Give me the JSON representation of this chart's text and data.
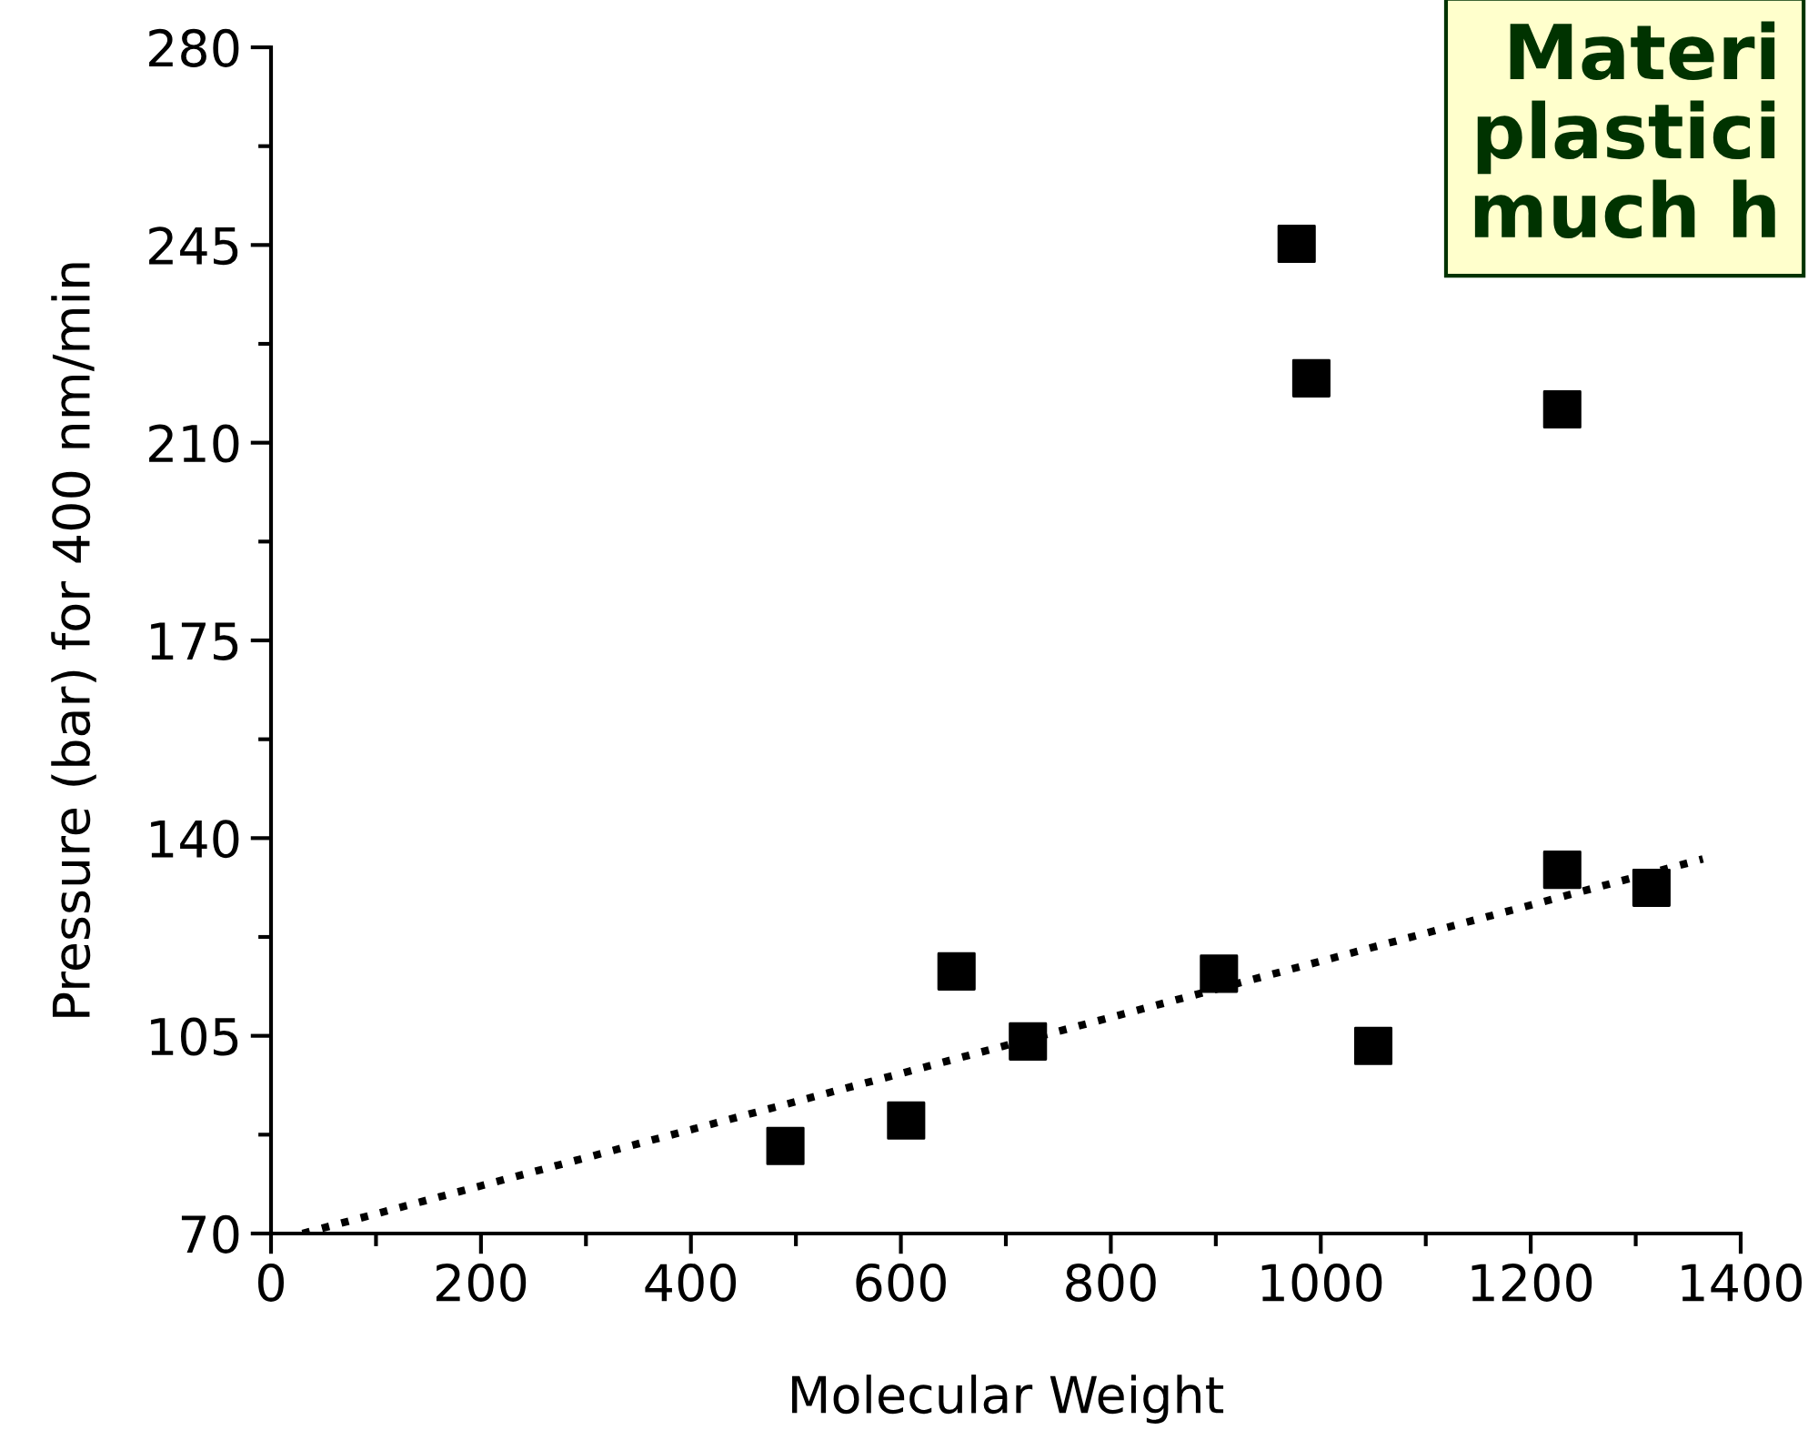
{
  "chart_data": {
    "type": "scatter",
    "xlabel": "Molecular Weight",
    "ylabel": "Pressure (bar) for 400 nm/min",
    "xlim": [
      0,
      1400
    ],
    "xticks": [
      0,
      200,
      400,
      600,
      800,
      1000,
      1200,
      1400
    ],
    "ylim": [
      70,
      280
    ],
    "yticks": [
      70,
      105,
      140,
      175,
      210,
      245,
      280
    ],
    "grid": false,
    "legend": false,
    "marker": "square",
    "series": [
      {
        "color": "#000000",
        "x": [
          490,
          605,
          653,
          721,
          903,
          977,
          991,
          1050,
          1230,
          1230,
          1315
        ],
        "values": [
          85.5,
          90,
          116.4,
          104,
          116,
          245.2,
          221.4,
          103.2,
          215.9,
          134.4,
          131.2
        ]
      },
      {
        "type": "line",
        "line_style": "dotted",
        "marker": "none",
        "color": "#000000",
        "x": [
          30,
          1364
        ],
        "values": [
          70,
          136.3
        ]
      }
    ],
    "annotations": [
      "Materi\nplastici\nmuch h"
    ]
  }
}
